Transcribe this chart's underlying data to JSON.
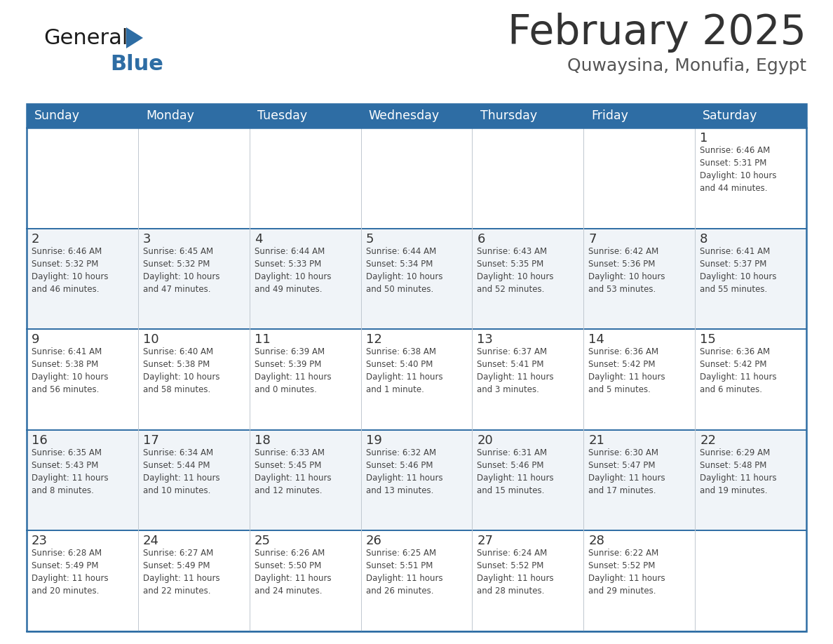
{
  "title": "February 2025",
  "subtitle": "Quwaysina, Monufia, Egypt",
  "header_bg": "#2e6da4",
  "header_text_color": "#ffffff",
  "cell_bg_light": "#f0f4f8",
  "cell_bg_white": "#ffffff",
  "border_color": "#2e6da4",
  "thin_line_color": "#c0c8d0",
  "day_headers": [
    "Sunday",
    "Monday",
    "Tuesday",
    "Wednesday",
    "Thursday",
    "Friday",
    "Saturday"
  ],
  "title_color": "#333333",
  "subtitle_color": "#555555",
  "day_num_color": "#333333",
  "info_color": "#444444",
  "weeks": [
    [
      {
        "day": "",
        "info": ""
      },
      {
        "day": "",
        "info": ""
      },
      {
        "day": "",
        "info": ""
      },
      {
        "day": "",
        "info": ""
      },
      {
        "day": "",
        "info": ""
      },
      {
        "day": "",
        "info": ""
      },
      {
        "day": "1",
        "info": "Sunrise: 6:46 AM\nSunset: 5:31 PM\nDaylight: 10 hours\nand 44 minutes."
      }
    ],
    [
      {
        "day": "2",
        "info": "Sunrise: 6:46 AM\nSunset: 5:32 PM\nDaylight: 10 hours\nand 46 minutes."
      },
      {
        "day": "3",
        "info": "Sunrise: 6:45 AM\nSunset: 5:32 PM\nDaylight: 10 hours\nand 47 minutes."
      },
      {
        "day": "4",
        "info": "Sunrise: 6:44 AM\nSunset: 5:33 PM\nDaylight: 10 hours\nand 49 minutes."
      },
      {
        "day": "5",
        "info": "Sunrise: 6:44 AM\nSunset: 5:34 PM\nDaylight: 10 hours\nand 50 minutes."
      },
      {
        "day": "6",
        "info": "Sunrise: 6:43 AM\nSunset: 5:35 PM\nDaylight: 10 hours\nand 52 minutes."
      },
      {
        "day": "7",
        "info": "Sunrise: 6:42 AM\nSunset: 5:36 PM\nDaylight: 10 hours\nand 53 minutes."
      },
      {
        "day": "8",
        "info": "Sunrise: 6:41 AM\nSunset: 5:37 PM\nDaylight: 10 hours\nand 55 minutes."
      }
    ],
    [
      {
        "day": "9",
        "info": "Sunrise: 6:41 AM\nSunset: 5:38 PM\nDaylight: 10 hours\nand 56 minutes."
      },
      {
        "day": "10",
        "info": "Sunrise: 6:40 AM\nSunset: 5:38 PM\nDaylight: 10 hours\nand 58 minutes."
      },
      {
        "day": "11",
        "info": "Sunrise: 6:39 AM\nSunset: 5:39 PM\nDaylight: 11 hours\nand 0 minutes."
      },
      {
        "day": "12",
        "info": "Sunrise: 6:38 AM\nSunset: 5:40 PM\nDaylight: 11 hours\nand 1 minute."
      },
      {
        "day": "13",
        "info": "Sunrise: 6:37 AM\nSunset: 5:41 PM\nDaylight: 11 hours\nand 3 minutes."
      },
      {
        "day": "14",
        "info": "Sunrise: 6:36 AM\nSunset: 5:42 PM\nDaylight: 11 hours\nand 5 minutes."
      },
      {
        "day": "15",
        "info": "Sunrise: 6:36 AM\nSunset: 5:42 PM\nDaylight: 11 hours\nand 6 minutes."
      }
    ],
    [
      {
        "day": "16",
        "info": "Sunrise: 6:35 AM\nSunset: 5:43 PM\nDaylight: 11 hours\nand 8 minutes."
      },
      {
        "day": "17",
        "info": "Sunrise: 6:34 AM\nSunset: 5:44 PM\nDaylight: 11 hours\nand 10 minutes."
      },
      {
        "day": "18",
        "info": "Sunrise: 6:33 AM\nSunset: 5:45 PM\nDaylight: 11 hours\nand 12 minutes."
      },
      {
        "day": "19",
        "info": "Sunrise: 6:32 AM\nSunset: 5:46 PM\nDaylight: 11 hours\nand 13 minutes."
      },
      {
        "day": "20",
        "info": "Sunrise: 6:31 AM\nSunset: 5:46 PM\nDaylight: 11 hours\nand 15 minutes."
      },
      {
        "day": "21",
        "info": "Sunrise: 6:30 AM\nSunset: 5:47 PM\nDaylight: 11 hours\nand 17 minutes."
      },
      {
        "day": "22",
        "info": "Sunrise: 6:29 AM\nSunset: 5:48 PM\nDaylight: 11 hours\nand 19 minutes."
      }
    ],
    [
      {
        "day": "23",
        "info": "Sunrise: 6:28 AM\nSunset: 5:49 PM\nDaylight: 11 hours\nand 20 minutes."
      },
      {
        "day": "24",
        "info": "Sunrise: 6:27 AM\nSunset: 5:49 PM\nDaylight: 11 hours\nand 22 minutes."
      },
      {
        "day": "25",
        "info": "Sunrise: 6:26 AM\nSunset: 5:50 PM\nDaylight: 11 hours\nand 24 minutes."
      },
      {
        "day": "26",
        "info": "Sunrise: 6:25 AM\nSunset: 5:51 PM\nDaylight: 11 hours\nand 26 minutes."
      },
      {
        "day": "27",
        "info": "Sunrise: 6:24 AM\nSunset: 5:52 PM\nDaylight: 11 hours\nand 28 minutes."
      },
      {
        "day": "28",
        "info": "Sunrise: 6:22 AM\nSunset: 5:52 PM\nDaylight: 11 hours\nand 29 minutes."
      },
      {
        "day": "",
        "info": ""
      }
    ]
  ]
}
